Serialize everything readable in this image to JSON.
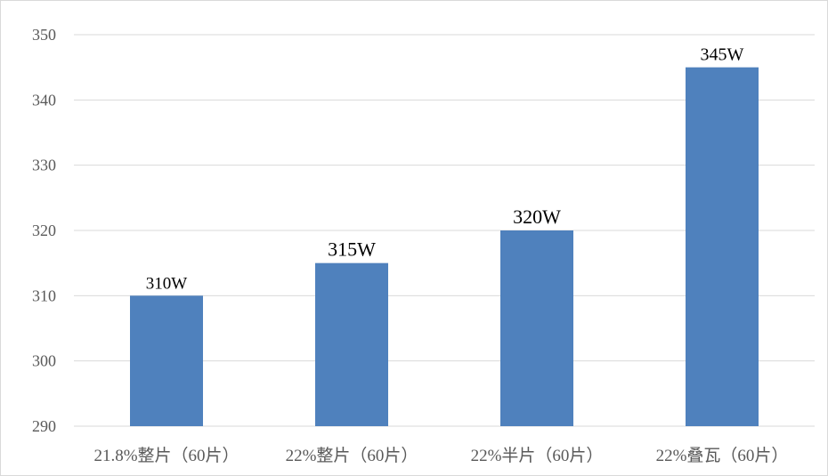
{
  "chart_data": {
    "type": "bar",
    "categories": [
      "21.8%整片（60片）",
      "22%整片（60片）",
      "22%半片（60片）",
      "22%叠瓦（60片）"
    ],
    "values": [
      310,
      315,
      320,
      345
    ],
    "data_labels": [
      "310W",
      "315W",
      "320W",
      "345W"
    ],
    "yticks": [
      290,
      300,
      310,
      320,
      330,
      340,
      350
    ],
    "ylim": [
      290,
      350
    ],
    "grid": true,
    "legend": "none",
    "title": "",
    "xlabel": "",
    "ylabel": "",
    "colors": {
      "bar": "#4f81bd",
      "grid": "#d9d9d9",
      "tick_text": "#595959",
      "label_text": "#000000"
    }
  }
}
